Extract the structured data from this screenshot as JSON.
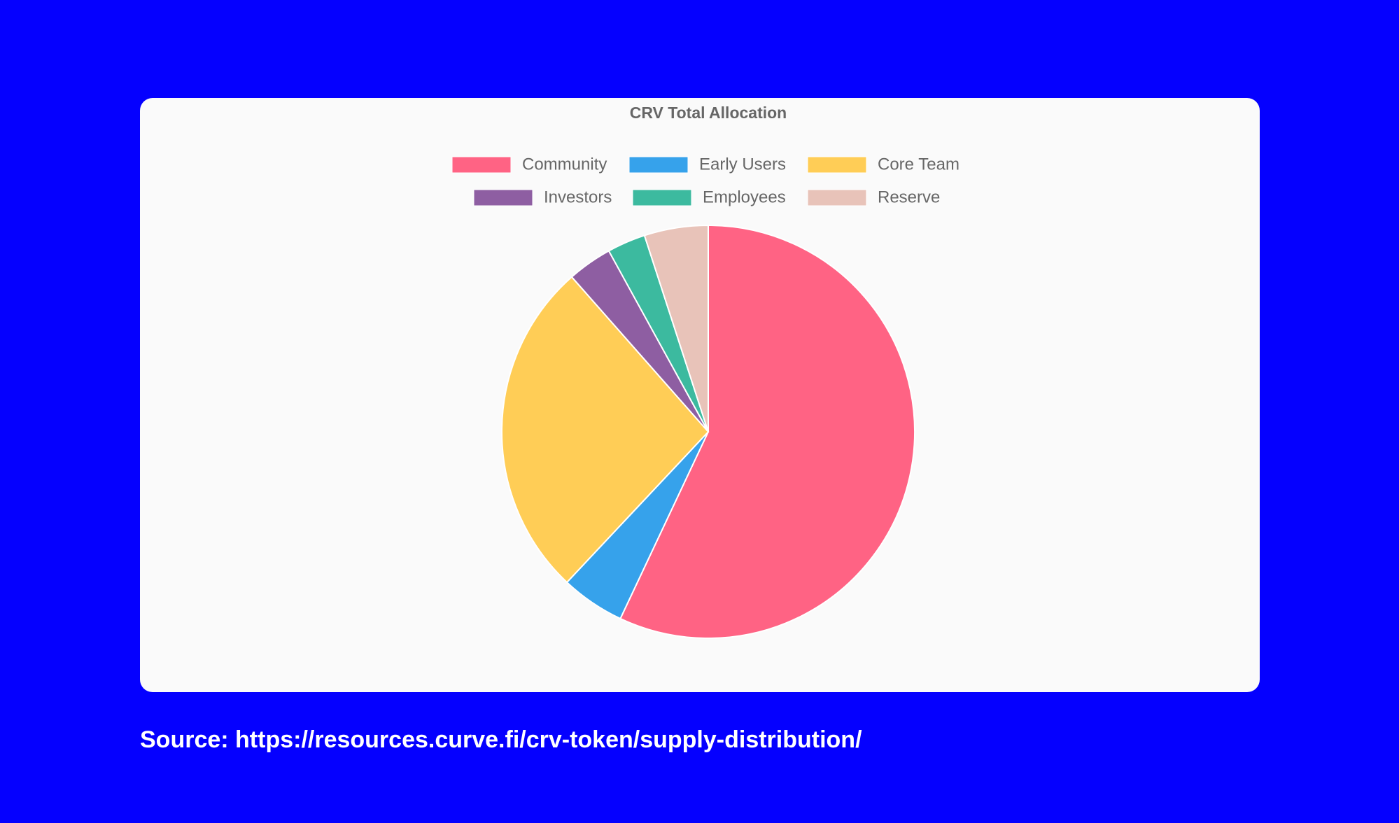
{
  "chart_data": {
    "type": "pie",
    "title": "CRV Total Allocation",
    "categories": [
      "Community",
      "Early Users",
      "Core Team",
      "Investors",
      "Employees",
      "Reserve"
    ],
    "values": [
      57,
      5,
      26.5,
      3.5,
      3,
      5
    ],
    "colors": [
      "#ff6384",
      "#36a2eb",
      "#ffcd56",
      "#8e5ea2",
      "#3cba9f",
      "#e8c3b9"
    ]
  },
  "source": "Source: https://resources.curve.fi/crv-token/supply-distribution/"
}
